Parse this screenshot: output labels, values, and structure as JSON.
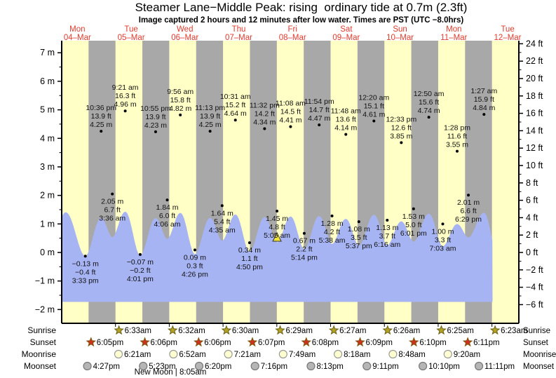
{
  "header": {
    "title": "Steamer Lane−Middle Peak: rising  ordinary tide at 0.7m (2.3ft)",
    "subtitle": "Image captured 2 hours and 12 minutes after low water. Times are PST (UTC −8.0hrs)"
  },
  "colors": {
    "day_band": "#ffffc6",
    "night_band": "#a8a8a8",
    "tide_fill": "#a7b4f4",
    "date_label": "#e23b2e",
    "marker_triangle": "#f2e23c",
    "sunrise_star": "#b2a326",
    "sunset_star": "#d02f1e",
    "moonrise_circle": "#ffffd2",
    "moonset_circle": "#b5b5b5",
    "text": "#000000"
  },
  "y_axis_left": {
    "unit": "m",
    "values": [
      7,
      6,
      5,
      4,
      3,
      2,
      1,
      0,
      -1,
      -2
    ],
    "labels": [
      "7 m",
      "6 m",
      "5 m",
      "4 m",
      "3 m",
      "2 m",
      "1 m",
      "0 m",
      "−1 m",
      "−2 m"
    ]
  },
  "y_axis_right": {
    "unit": "ft",
    "values": [
      24,
      22,
      20,
      18,
      16,
      14,
      12,
      10,
      8,
      6,
      4,
      2,
      0,
      -2,
      -4,
      -6
    ],
    "labels": [
      "24 ft",
      "22 ft",
      "20 ft",
      "18 ft",
      "16 ft",
      "14 ft",
      "12 ft",
      "10 ft",
      "8 ft",
      "6 ft",
      "4 ft",
      "2 ft",
      "0 ft",
      "−2 ft",
      "−4 ft",
      "−6 ft"
    ]
  },
  "chart_data": {
    "type": "area",
    "title": "Steamer Lane−Middle Peak tide curve",
    "ylabel_left": "height (m)",
    "ylabel_right": "height (ft)",
    "ylim_m": [
      -2.5,
      7.5
    ],
    "grid": false,
    "day_labels": [
      {
        "name": "Mon",
        "date": "04–Mar"
      },
      {
        "name": "Tue",
        "date": "05–Mar"
      },
      {
        "name": "Wed",
        "date": "06–Mar"
      },
      {
        "name": "Thu",
        "date": "07–Mar"
      },
      {
        "name": "Fri",
        "date": "08–Mar"
      },
      {
        "name": "Sat",
        "date": "09–Mar"
      },
      {
        "name": "Sun",
        "date": "10–Mar"
      },
      {
        "name": "Mon",
        "date": "11–Mar"
      },
      {
        "name": "Tue",
        "date": "12–Mar"
      }
    ],
    "tide_events": [
      {
        "day": 0,
        "time": "3:33 pm",
        "m": -0.13,
        "m_label": "−0.13 m",
        "ft_label": "−0.4 ft",
        "type": "low"
      },
      {
        "day": 0,
        "time": "10:36 pm",
        "m": 4.25,
        "m_label": "4.25 m",
        "ft_label": "13.9 ft",
        "type": "high"
      },
      {
        "day": 1,
        "time": "3:36 am",
        "m": 2.05,
        "m_label": "2.05 m",
        "ft_label": "6.7 ft",
        "type": "low"
      },
      {
        "day": 1,
        "time": "9:21 am",
        "m": 4.96,
        "m_label": "4.96 m",
        "ft_label": "16.3 ft",
        "type": "high"
      },
      {
        "day": 1,
        "time": "4:01 pm",
        "m": -0.07,
        "m_label": "−0.07 m",
        "ft_label": "−0.2 ft",
        "type": "low"
      },
      {
        "day": 1,
        "time": "10:55 pm",
        "m": 4.23,
        "m_label": "4.23 m",
        "ft_label": "13.9 ft",
        "type": "high"
      },
      {
        "day": 2,
        "time": "4:06 am",
        "m": 1.84,
        "m_label": "1.84 m",
        "ft_label": "6.0 ft",
        "type": "low"
      },
      {
        "day": 2,
        "time": "9:56 am",
        "m": 4.82,
        "m_label": "4.82 m",
        "ft_label": "15.8 ft",
        "type": "high"
      },
      {
        "day": 2,
        "time": "4:26 pm",
        "m": 0.09,
        "m_label": "0.09 m",
        "ft_label": "0.3 ft",
        "type": "low"
      },
      {
        "day": 2,
        "time": "11:13 pm",
        "m": 4.25,
        "m_label": "4.25 m",
        "ft_label": "13.9 ft",
        "type": "high"
      },
      {
        "day": 3,
        "time": "4:35 am",
        "m": 1.64,
        "m_label": "1.64 m",
        "ft_label": "5.4 ft",
        "type": "low"
      },
      {
        "day": 3,
        "time": "10:31 am",
        "m": 4.64,
        "m_label": "4.64 m",
        "ft_label": "15.2 ft",
        "type": "high"
      },
      {
        "day": 3,
        "time": "4:50 pm",
        "m": 0.34,
        "m_label": "0.34 m",
        "ft_label": "1.1 ft",
        "type": "low"
      },
      {
        "day": 3,
        "time": "11:32 pm",
        "m": 4.34,
        "m_label": "4.34 m",
        "ft_label": "14.2 ft",
        "type": "high"
      },
      {
        "day": 4,
        "time": "5:05 am",
        "m": 1.45,
        "m_label": "1.45 m",
        "ft_label": "4.8 ft",
        "type": "low"
      },
      {
        "day": 4,
        "time": "11:08 am",
        "m": 4.41,
        "m_label": "4.41 m",
        "ft_label": "14.5 ft",
        "type": "high"
      },
      {
        "day": 4,
        "time": "5:14 pm",
        "m": 0.67,
        "m_label": "0.67 m",
        "ft_label": "2.2 ft",
        "type": "low"
      },
      {
        "day": 4,
        "time": "11:54 pm",
        "m": 4.47,
        "m_label": "4.47 m",
        "ft_label": "14.7 ft",
        "type": "high"
      },
      {
        "day": 5,
        "time": "5:38 am",
        "m": 1.28,
        "m_label": "1.28 m",
        "ft_label": "4.2 ft",
        "type": "low"
      },
      {
        "day": 5,
        "time": "11:48 am",
        "m": 4.14,
        "m_label": "4.14 m",
        "ft_label": "13.6 ft",
        "type": "high"
      },
      {
        "day": 5,
        "time": "5:37 pm",
        "m": 1.08,
        "m_label": "1.08 m",
        "ft_label": "3.5 ft",
        "type": "low"
      },
      {
        "day": 6,
        "time": "12:20 am",
        "m": 4.61,
        "m_label": "4.61 m",
        "ft_label": "15.1 ft",
        "type": "high"
      },
      {
        "day": 6,
        "time": "6:16 am",
        "m": 1.13,
        "m_label": "1.13 m",
        "ft_label": "3.7 ft",
        "type": "low"
      },
      {
        "day": 6,
        "time": "12:33 pm",
        "m": 3.85,
        "m_label": "3.85 m",
        "ft_label": "12.6 ft",
        "type": "high"
      },
      {
        "day": 6,
        "time": "6:01 pm",
        "m": 1.53,
        "m_label": "1.53 m",
        "ft_label": "5.0 ft",
        "type": "low"
      },
      {
        "day": 7,
        "time": "12:50 am",
        "m": 4.74,
        "m_label": "4.74 m",
        "ft_label": "15.6 ft",
        "type": "high"
      },
      {
        "day": 7,
        "time": "7:03 am",
        "m": 1.0,
        "m_label": "1.00 m",
        "ft_label": "3.3 ft",
        "type": "low"
      },
      {
        "day": 7,
        "time": "1:28 pm",
        "m": 3.55,
        "m_label": "3.55 m",
        "ft_label": "11.6 ft",
        "type": "high"
      },
      {
        "day": 7,
        "time": "6:29 pm",
        "m": 2.01,
        "m_label": "2.01 m",
        "ft_label": "6.6 ft",
        "type": "low"
      },
      {
        "day": 8,
        "time": "1:27 am",
        "m": 4.84,
        "m_label": "4.84 m",
        "ft_label": "15.9 ft",
        "type": "high"
      }
    ],
    "capture_marker": {
      "day": 4,
      "time": "5:05 am",
      "note": "yellow triangle at capture reference low water"
    }
  },
  "astro_table": {
    "rows": [
      {
        "label": "Sunrise",
        "icon": "sunrise-star",
        "events": [
          {
            "day": 1,
            "time": "6:33am"
          },
          {
            "day": 2,
            "time": "6:32am"
          },
          {
            "day": 3,
            "time": "6:30am"
          },
          {
            "day": 4,
            "time": "6:29am"
          },
          {
            "day": 5,
            "time": "6:27am"
          },
          {
            "day": 6,
            "time": "6:26am"
          },
          {
            "day": 7,
            "time": "6:25am"
          },
          {
            "day": 8,
            "time": "6:23am"
          }
        ]
      },
      {
        "label": "Sunset",
        "icon": "sunset-star",
        "events": [
          {
            "day": 0,
            "time": "6:05pm"
          },
          {
            "day": 1,
            "time": "6:06pm"
          },
          {
            "day": 2,
            "time": "6:06pm"
          },
          {
            "day": 3,
            "time": "6:07pm"
          },
          {
            "day": 4,
            "time": "6:08pm"
          },
          {
            "day": 5,
            "time": "6:09pm"
          },
          {
            "day": 6,
            "time": "6:10pm"
          },
          {
            "day": 7,
            "time": "6:11pm"
          }
        ]
      },
      {
        "label": "Moonrise",
        "icon": "moonrise-circle",
        "events": [
          {
            "day": 1,
            "time": "6:21am"
          },
          {
            "day": 2,
            "time": "6:52am"
          },
          {
            "day": 3,
            "time": "7:21am"
          },
          {
            "day": 4,
            "time": "7:49am"
          },
          {
            "day": 5,
            "time": "8:18am"
          },
          {
            "day": 6,
            "time": "8:48am"
          },
          {
            "day": 7,
            "time": "9:20am"
          }
        ]
      },
      {
        "label": "Moonset",
        "icon": "moonset-circle",
        "events": [
          {
            "day": 0,
            "time": "4:27pm"
          },
          {
            "day": 1,
            "time": "5:23pm"
          },
          {
            "day": 2,
            "time": "6:20pm"
          },
          {
            "day": 3,
            "time": "7:16pm"
          },
          {
            "day": 4,
            "time": "8:13pm"
          },
          {
            "day": 5,
            "time": "9:11pm"
          },
          {
            "day": 6,
            "time": "10:10pm"
          },
          {
            "day": 7,
            "time": "11:11pm"
          }
        ]
      }
    ],
    "moon_phase": {
      "label": "New Moon",
      "time": "8:05am",
      "display": "New Moon | 8:05am"
    }
  }
}
